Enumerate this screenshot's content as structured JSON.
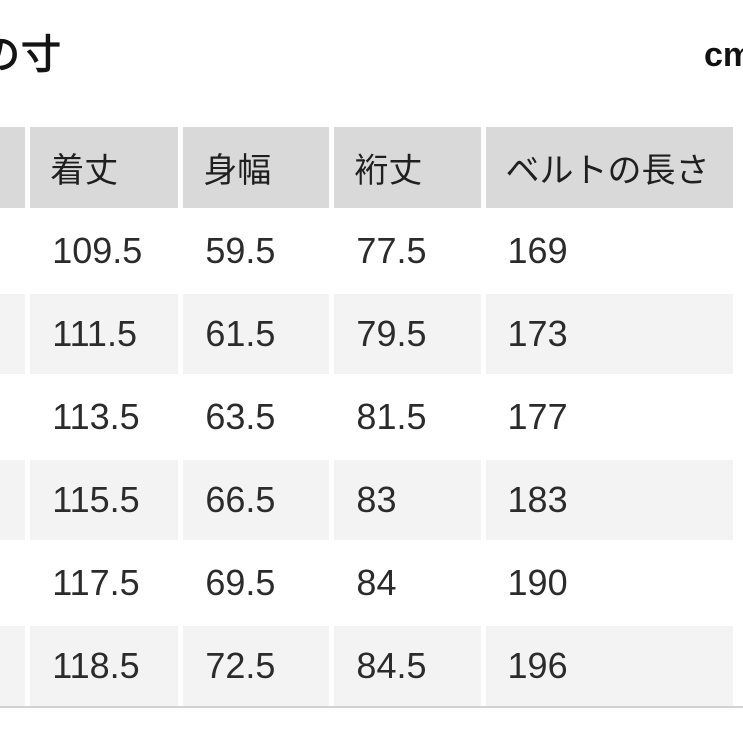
{
  "page": {
    "title_partial": "の寸",
    "unit_label": "cm"
  },
  "table": {
    "headers": {
      "length": "着丈",
      "body_width": "身幅",
      "sleeve_length": "裄丈",
      "belt_length": "ベルトの長さ"
    },
    "rows": [
      [
        "109.5",
        "59.5",
        "77.5",
        "169"
      ],
      [
        "111.5",
        "61.5",
        "79.5",
        "173"
      ],
      [
        "113.5",
        "63.5",
        "81.5",
        "177"
      ],
      [
        "115.5",
        "66.5",
        "83",
        "183"
      ],
      [
        "117.5",
        "69.5",
        "84",
        "190"
      ],
      [
        "118.5",
        "72.5",
        "84.5",
        "196"
      ]
    ]
  },
  "colors": {
    "header_bg": "#d9d9d9",
    "stripe_bg": "#f3f3f3",
    "row_bg": "#ffffff",
    "text": "#2b2b2b",
    "title_text": "#141414"
  }
}
